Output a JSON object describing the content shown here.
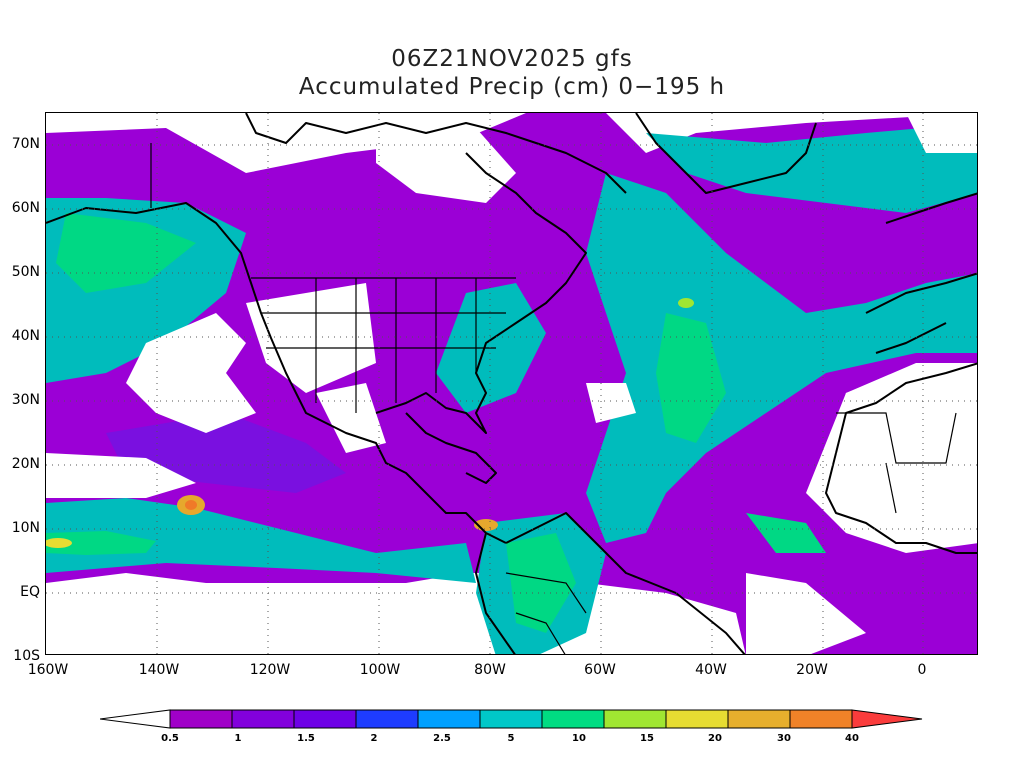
{
  "titles": {
    "line1": "06Z21NOV2025 gfs",
    "line2": "Accumulated Precip (cm) 0−195 h"
  },
  "map": {
    "lat_labels": [
      "70N",
      "60N",
      "50N",
      "40N",
      "30N",
      "20N",
      "10N",
      "EQ",
      "10S"
    ],
    "lon_labels": [
      "160W",
      "140W",
      "120W",
      "100W",
      "80W",
      "60W",
      "40W",
      "20W",
      "0"
    ],
    "background": "#ffffff",
    "gridlines": "dotted"
  },
  "colorbar": {
    "labels": [
      "0.5",
      "1",
      "1.5",
      "2",
      "2.5",
      "5",
      "10",
      "15",
      "20",
      "30",
      "40"
    ],
    "colors": [
      "#a000c8",
      "#8200dc",
      "#6e00e6",
      "#1e3cff",
      "#00a0ff",
      "#00c8c8",
      "#00dc82",
      "#a0e632",
      "#e6dc32",
      "#e6af2d",
      "#f08228",
      "#fa3c3c"
    ],
    "under_color": "#ffffff"
  }
}
